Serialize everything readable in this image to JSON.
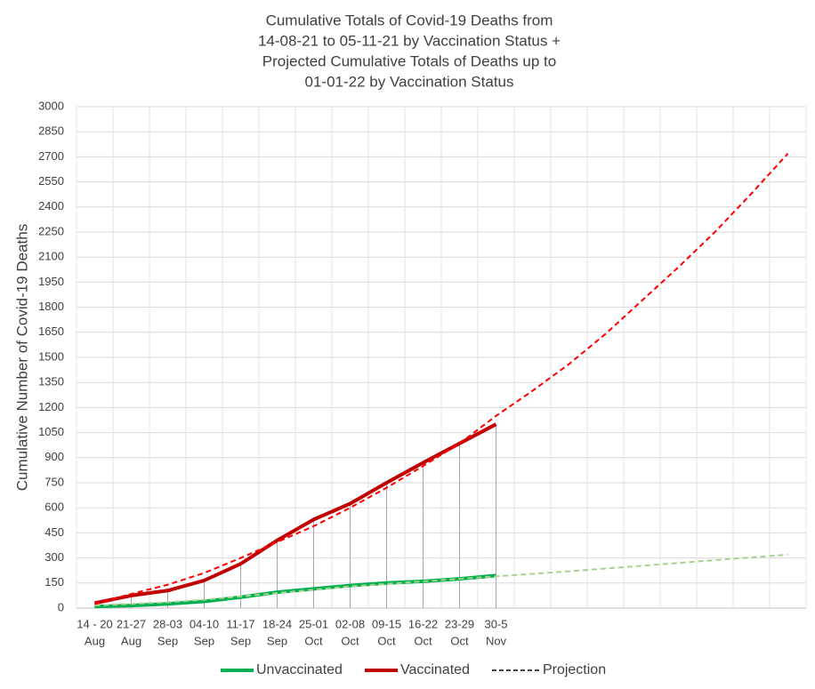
{
  "chart_data": {
    "type": "line",
    "title": [
      "Cumulative Totals of Covid-19 Deaths from",
      "14-08-21 to 05-11-21 by Vaccination Status +",
      "Projected Cumulative Totals of Deaths up to",
      "01-01-22 by Vaccination Status"
    ],
    "y_label": "Cumulative Number of Covid-19 Deaths",
    "categories": [
      [
        "14 - 20",
        "Aug"
      ],
      [
        "21-27",
        "Aug"
      ],
      [
        "28-03",
        "Sep"
      ],
      [
        "04-10",
        "Sep"
      ],
      [
        "11-17",
        "Sep"
      ],
      [
        "18-24",
        "Sep"
      ],
      [
        "25-01",
        "Oct"
      ],
      [
        "02-08",
        "Oct"
      ],
      [
        "09-15",
        "Oct"
      ],
      [
        "16-22",
        "Oct"
      ],
      [
        "23-29",
        "Oct"
      ],
      [
        "30-5",
        "Nov"
      ],
      null,
      null,
      null,
      null,
      null,
      null,
      null,
      null
    ],
    "series": [
      {
        "name": "Unvaccinated",
        "color": "#00b050",
        "values": [
          10,
          15,
          25,
          40,
          65,
          95,
          115,
          135,
          150,
          160,
          175,
          195,
          null,
          null,
          null,
          null,
          null,
          null,
          null,
          null
        ]
      },
      {
        "name": "Vaccinated",
        "color": "#c00000",
        "values": [
          30,
          75,
          105,
          165,
          265,
          405,
          530,
          625,
          750,
          870,
          985,
          1100,
          null,
          null,
          null,
          null,
          null,
          null,
          null,
          null
        ]
      }
    ],
    "projection": {
      "name": "Projection",
      "color": "#000000",
      "series": [
        {
          "color": "#ff0000",
          "values": [
            25,
            85,
            140,
            210,
            300,
            395,
            490,
            600,
            720,
            850,
            985,
            1150,
            1300,
            1460,
            1640,
            1840,
            2040,
            2250,
            2480,
            2720
          ]
        },
        {
          "color": "#a9d18e",
          "values": [
            15,
            25,
            35,
            50,
            70,
            90,
            110,
            130,
            145,
            160,
            175,
            190,
            205,
            220,
            237,
            253,
            270,
            287,
            303,
            320
          ]
        }
      ]
    },
    "ylim": [
      0,
      3000
    ],
    "yticks": [
      0,
      150,
      300,
      450,
      600,
      750,
      900,
      1050,
      1200,
      1350,
      1500,
      1650,
      1800,
      1950,
      2100,
      2250,
      2400,
      2550,
      2700,
      2850,
      3000
    ],
    "grid": true
  }
}
